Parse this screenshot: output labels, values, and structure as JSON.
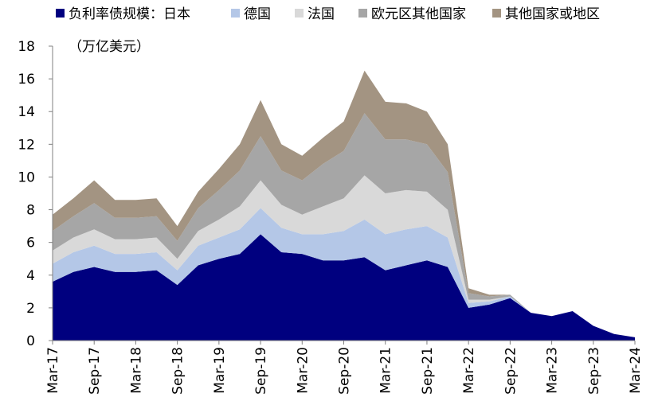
{
  "chart_data": {
    "type": "area",
    "stacked": true,
    "unit_label": "（万亿美元）",
    "ylim": [
      0,
      18
    ],
    "y_ticks": [
      0,
      2,
      4,
      6,
      8,
      10,
      12,
      14,
      16,
      18
    ],
    "x_tick_labels": [
      "Mar-17",
      "Sep-17",
      "Mar-18",
      "Sep-18",
      "Mar-19",
      "Sep-19",
      "Mar-20",
      "Sep-20",
      "Mar-21",
      "Sep-21",
      "Mar-22",
      "Sep-22",
      "Mar-23",
      "Sep-23",
      "Mar-24"
    ],
    "x": [
      "Mar-17",
      "Jun-17",
      "Sep-17",
      "Dec-17",
      "Mar-18",
      "Jun-18",
      "Sep-18",
      "Dec-18",
      "Mar-19",
      "Jun-19",
      "Sep-19",
      "Dec-19",
      "Mar-20",
      "Jun-20",
      "Sep-20",
      "Dec-20",
      "Mar-21",
      "Jun-21",
      "Sep-21",
      "Dec-21",
      "Mar-22",
      "Jun-22",
      "Sep-22",
      "Dec-22",
      "Mar-23",
      "Jun-23",
      "Sep-23",
      "Dec-23",
      "Mar-24"
    ],
    "legend_position": "top",
    "series": [
      {
        "name": "负利率债规模：日本",
        "color": "#00007f",
        "values": [
          3.6,
          4.2,
          4.5,
          4.2,
          4.2,
          4.3,
          3.4,
          4.6,
          5.0,
          5.3,
          6.5,
          5.4,
          5.3,
          4.9,
          4.9,
          5.1,
          4.3,
          4.6,
          4.9,
          4.5,
          2.0,
          2.2,
          2.6,
          1.7,
          1.5,
          1.8,
          0.9,
          0.4,
          0.2
        ]
      },
      {
        "name": "德国",
        "color": "#b4c7e7",
        "values": [
          1.1,
          1.2,
          1.3,
          1.1,
          1.1,
          1.1,
          0.9,
          1.2,
          1.3,
          1.5,
          1.6,
          1.5,
          1.2,
          1.6,
          1.8,
          2.3,
          2.2,
          2.2,
          2.1,
          1.8,
          0.3,
          0.2,
          0.1,
          0.0,
          0.0,
          0.0,
          0.0,
          0.0,
          0.0
        ]
      },
      {
        "name": "法国",
        "color": "#d9d9d9",
        "values": [
          0.8,
          0.9,
          1.0,
          0.9,
          0.9,
          0.9,
          0.7,
          0.9,
          1.1,
          1.4,
          1.7,
          1.4,
          1.2,
          1.7,
          2.0,
          2.7,
          2.5,
          2.4,
          2.1,
          1.7,
          0.2,
          0.1,
          0.0,
          0.0,
          0.0,
          0.0,
          0.0,
          0.0,
          0.0
        ]
      },
      {
        "name": "欧元区其他国家",
        "color": "#a6a6a6",
        "values": [
          1.2,
          1.3,
          1.6,
          1.3,
          1.3,
          1.3,
          1.1,
          1.4,
          1.8,
          2.2,
          2.7,
          2.1,
          2.1,
          2.6,
          2.9,
          3.8,
          3.3,
          3.1,
          2.9,
          2.3,
          0.4,
          0.2,
          0.1,
          0.0,
          0.0,
          0.0,
          0.0,
          0.0,
          0.0
        ]
      },
      {
        "name": "其他国家或地区",
        "color": "#a39482",
        "values": [
          1.0,
          1.1,
          1.4,
          1.1,
          1.1,
          1.1,
          0.9,
          1.0,
          1.3,
          1.6,
          2.2,
          1.6,
          1.5,
          1.6,
          1.8,
          2.6,
          2.3,
          2.2,
          2.0,
          1.7,
          0.3,
          0.1,
          0.0,
          0.0,
          0.0,
          0.0,
          0.0,
          0.0,
          0.0
        ]
      }
    ]
  }
}
